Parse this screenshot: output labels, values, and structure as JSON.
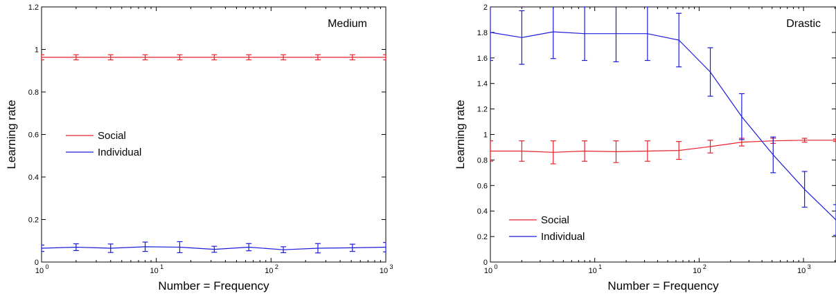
{
  "chart_data": [
    {
      "type": "line",
      "title": "Medium",
      "xlabel": "Number = Frequency",
      "ylabel": "Learning rate",
      "xscale": "log",
      "xlim": [
        1,
        1000
      ],
      "ylim": [
        0,
        1.2
      ],
      "x_ticks": [
        {
          "value": 1,
          "base": "10",
          "exp": "0"
        },
        {
          "value": 10,
          "base": "10",
          "exp": "1"
        },
        {
          "value": 100,
          "base": "10",
          "exp": "2"
        },
        {
          "value": 1000,
          "base": "10",
          "exp": "3"
        }
      ],
      "y_ticks": [
        {
          "value": 0,
          "label": "0"
        },
        {
          "value": 0.2,
          "label": "0.2"
        },
        {
          "value": 0.4,
          "label": "0.4"
        },
        {
          "value": 0.6,
          "label": "0.6"
        },
        {
          "value": 0.8,
          "label": "0.8"
        },
        {
          "value": 1,
          "label": "1"
        },
        {
          "value": 1.2,
          "label": "1.2"
        }
      ],
      "grid": false,
      "legend_position": "center-left",
      "x": [
        1,
        2,
        4,
        8,
        16,
        32,
        64,
        128,
        256,
        512,
        1000
      ],
      "series": [
        {
          "name": "Social",
          "color": "#e8202a",
          "values": [
            0.963,
            0.963,
            0.963,
            0.963,
            0.963,
            0.963,
            0.963,
            0.963,
            0.963,
            0.963,
            0.963
          ],
          "errors": [
            0.012,
            0.012,
            0.012,
            0.012,
            0.012,
            0.012,
            0.012,
            0.012,
            0.012,
            0.012,
            0.012
          ]
        },
        {
          "name": "Individual",
          "color": "#1a1adb",
          "values": [
            0.065,
            0.07,
            0.065,
            0.072,
            0.07,
            0.06,
            0.07,
            0.058,
            0.065,
            0.067,
            0.07
          ],
          "errors": [
            0.015,
            0.016,
            0.02,
            0.022,
            0.026,
            0.014,
            0.017,
            0.014,
            0.022,
            0.017,
            0.022
          ]
        }
      ]
    },
    {
      "type": "line",
      "title": "Drastic",
      "xlabel": "Number = Frequency",
      "ylabel": "Learning rate",
      "xscale": "log",
      "xlim": [
        1,
        2048
      ],
      "ylim": [
        0,
        2
      ],
      "x_ticks": [
        {
          "value": 1,
          "base": "10",
          "exp": "0"
        },
        {
          "value": 10,
          "base": "10",
          "exp": "1"
        },
        {
          "value": 100,
          "base": "10",
          "exp": "2"
        },
        {
          "value": 1000,
          "base": "10",
          "exp": "3"
        }
      ],
      "y_ticks": [
        {
          "value": 0,
          "label": "0"
        },
        {
          "value": 0.2,
          "label": "0.2"
        },
        {
          "value": 0.4,
          "label": "0.4"
        },
        {
          "value": 0.6,
          "label": "0.6"
        },
        {
          "value": 0.8,
          "label": "0.8"
        },
        {
          "value": 1,
          "label": "1"
        },
        {
          "value": 1.2,
          "label": "1.2"
        },
        {
          "value": 1.4,
          "label": "1.4"
        },
        {
          "value": 1.6,
          "label": "1.6"
        },
        {
          "value": 1.8,
          "label": "1.8"
        },
        {
          "value": 2,
          "label": "2"
        }
      ],
      "grid": false,
      "legend_position": "bottom-left",
      "x": [
        1,
        2,
        4,
        8,
        16,
        32,
        64,
        128,
        256,
        512,
        1024,
        2048
      ],
      "series": [
        {
          "name": "Social",
          "color": "#e8202a",
          "values": [
            0.87,
            0.87,
            0.86,
            0.87,
            0.865,
            0.87,
            0.875,
            0.905,
            0.94,
            0.95,
            0.955,
            0.955
          ],
          "errors": [
            0.08,
            0.08,
            0.09,
            0.08,
            0.085,
            0.08,
            0.07,
            0.05,
            0.03,
            0.02,
            0.015,
            0.01
          ]
        },
        {
          "name": "Individual",
          "color": "#1a1adb",
          "values": [
            1.8,
            1.76,
            1.805,
            1.79,
            1.79,
            1.79,
            1.74,
            1.49,
            1.14,
            0.84,
            0.57,
            0.33
          ],
          "errors": [
            0.22,
            0.21,
            0.21,
            0.21,
            0.22,
            0.21,
            0.21,
            0.19,
            0.18,
            0.14,
            0.14,
            0.12
          ]
        }
      ]
    }
  ]
}
